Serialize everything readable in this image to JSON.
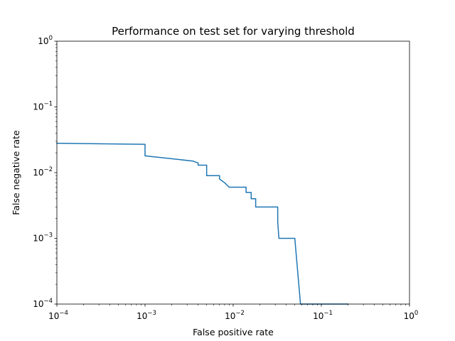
{
  "chart_data": {
    "type": "line",
    "title": "Performance on test set for varying threshold",
    "xlabel": "False positive rate",
    "ylabel": "False negative rate",
    "xscale": "log",
    "yscale": "log",
    "xlim": [
      0.0001,
      1
    ],
    "ylim": [
      0.0001,
      1
    ],
    "grid": false,
    "legend": "none",
    "x_ticks": [
      {
        "value": 0.0001,
        "base": "10",
        "exp": "−4"
      },
      {
        "value": 0.001,
        "base": "10",
        "exp": "−3"
      },
      {
        "value": 0.01,
        "base": "10",
        "exp": "−2"
      },
      {
        "value": 0.1,
        "base": "10",
        "exp": "−1"
      },
      {
        "value": 1,
        "base": "10",
        "exp": "0"
      }
    ],
    "y_ticks": [
      {
        "value": 0.0001,
        "base": "10",
        "exp": "−4"
      },
      {
        "value": 0.001,
        "base": "10",
        "exp": "−3"
      },
      {
        "value": 0.01,
        "base": "10",
        "exp": "−2"
      },
      {
        "value": 0.1,
        "base": "10",
        "exp": "−1"
      },
      {
        "value": 1,
        "base": "10",
        "exp": "0"
      }
    ],
    "series": [
      {
        "color": "#1f77b4",
        "points": [
          [
            0.0001,
            0.028
          ],
          [
            0.001,
            0.027
          ],
          [
            0.001,
            0.018
          ],
          [
            0.0035,
            0.015
          ],
          [
            0.004,
            0.014
          ],
          [
            0.004,
            0.013
          ],
          [
            0.005,
            0.013
          ],
          [
            0.005,
            0.009
          ],
          [
            0.007,
            0.009
          ],
          [
            0.007,
            0.008
          ],
          [
            0.008,
            0.007
          ],
          [
            0.009,
            0.006
          ],
          [
            0.014,
            0.006
          ],
          [
            0.014,
            0.005
          ],
          [
            0.016,
            0.005
          ],
          [
            0.016,
            0.004
          ],
          [
            0.018,
            0.004
          ],
          [
            0.018,
            0.003
          ],
          [
            0.032,
            0.003
          ],
          [
            0.032,
            0.0018
          ],
          [
            0.033,
            0.001
          ],
          [
            0.05,
            0.001
          ],
          [
            0.058,
            0.0001
          ],
          [
            0.2,
            0.0001
          ]
        ]
      }
    ]
  }
}
